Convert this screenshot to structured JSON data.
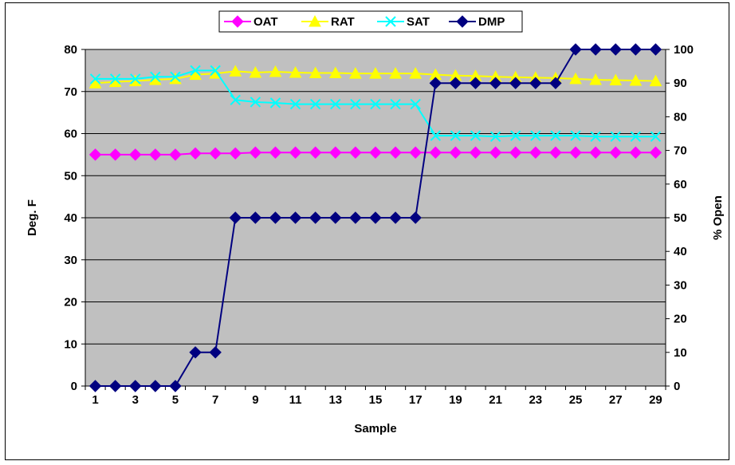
{
  "chart_data": {
    "type": "line",
    "title": "",
    "xlabel": "Sample",
    "ylabel": "Deg. F",
    "y2label": "% Open",
    "x": [
      1,
      2,
      3,
      4,
      5,
      6,
      7,
      8,
      9,
      10,
      11,
      12,
      13,
      14,
      15,
      16,
      17,
      18,
      19,
      20,
      21,
      22,
      23,
      24,
      25,
      26,
      27,
      28,
      29
    ],
    "x_ticks": [
      "1",
      "3",
      "5",
      "7",
      "9",
      "11",
      "13",
      "15",
      "17",
      "19",
      "21",
      "23",
      "25",
      "27",
      "29"
    ],
    "ylim": [
      0,
      80
    ],
    "y_ticks": [
      "0",
      "10",
      "20",
      "30",
      "40",
      "50",
      "60",
      "70",
      "80"
    ],
    "y2lim": [
      0,
      100
    ],
    "y2_ticks": [
      "0",
      "10",
      "20",
      "30",
      "40",
      "50",
      "60",
      "70",
      "80",
      "90",
      "100"
    ],
    "grid": true,
    "legend_position": "top-center",
    "series": [
      {
        "name": "OAT",
        "axis": "left",
        "color": "#ff00ff",
        "marker": "diamond",
        "values": [
          55,
          55,
          55,
          55,
          55,
          55.3,
          55.3,
          55.3,
          55.5,
          55.5,
          55.5,
          55.5,
          55.5,
          55.5,
          55.5,
          55.5,
          55.5,
          55.5,
          55.5,
          55.5,
          55.5,
          55.5,
          55.5,
          55.5,
          55.5,
          55.5,
          55.5,
          55.5,
          55.5
        ]
      },
      {
        "name": "RAT",
        "axis": "left",
        "color": "#ffff00",
        "marker": "triangle",
        "values": [
          72,
          72.3,
          72.5,
          72.8,
          73,
          74,
          74.3,
          74.8,
          74.5,
          74.7,
          74.5,
          74.4,
          74.4,
          74.3,
          74.3,
          74.3,
          74.3,
          74,
          73.8,
          73.7,
          73.5,
          73.4,
          73.3,
          73.2,
          73,
          72.8,
          72.7,
          72.6,
          72.5
        ]
      },
      {
        "name": "SAT",
        "axis": "left",
        "color": "#00ffff",
        "marker": "x",
        "values": [
          73,
          73,
          73,
          73.5,
          73.5,
          75,
          75,
          68,
          67.5,
          67.3,
          67,
          67,
          67,
          67,
          67,
          67,
          67,
          59.5,
          59.5,
          59.5,
          59.3,
          59.5,
          59.5,
          59.5,
          59.5,
          59.3,
          59.3,
          59.3,
          59.3
        ]
      },
      {
        "name": "DMP",
        "axis": "right",
        "color": "#000080",
        "marker": "diamond",
        "values": [
          0,
          0,
          0,
          0,
          0,
          10,
          10,
          50,
          50,
          50,
          50,
          50,
          50,
          50,
          50,
          50,
          50,
          90,
          90,
          90,
          90,
          90,
          90,
          90,
          100,
          100,
          100,
          100,
          100
        ]
      }
    ]
  }
}
